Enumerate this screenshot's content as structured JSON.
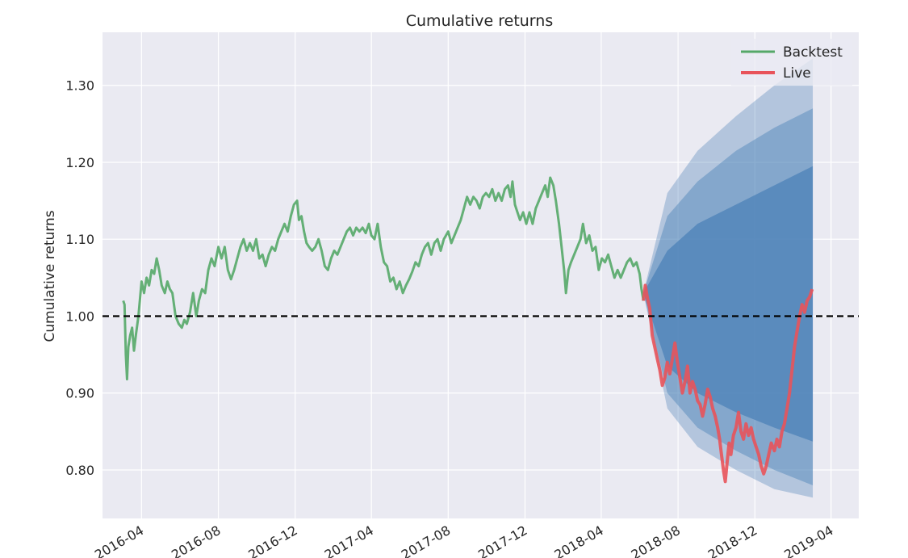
{
  "chart_data": {
    "type": "line",
    "title": "Cumulative returns",
    "ylabel": "Cumulative returns",
    "xlabel": "",
    "xlim": [
      "2016-01-30",
      "2019-05-15"
    ],
    "ylim": [
      0.737,
      1.369
    ],
    "y_ticks": [
      0.8,
      0.9,
      1.0,
      1.1,
      1.2,
      1.3
    ],
    "y_tick_labels": [
      "0.80",
      "0.90",
      "1.00",
      "1.10",
      "1.20",
      "1.30"
    ],
    "x_ticks": [
      "2016-04-01",
      "2016-08-01",
      "2016-12-01",
      "2017-04-01",
      "2017-08-01",
      "2017-12-01",
      "2018-04-01",
      "2018-08-01",
      "2018-12-01",
      "2019-04-01"
    ],
    "x_tick_labels": [
      "2016-04",
      "2016-08",
      "2016-12",
      "2017-04",
      "2017-08",
      "2017-12",
      "2018-04",
      "2018-08",
      "2018-12",
      "2019-04"
    ],
    "grid": true,
    "reference_line": {
      "y": 1.0,
      "style": "dashed",
      "color": "#000000"
    },
    "legend": {
      "position": "top-right",
      "entries": [
        "Backtest",
        "Live"
      ]
    },
    "series": [
      {
        "name": "Backtest",
        "color": "#55a868",
        "points": [
          [
            "2016-03-03",
            1.02
          ],
          [
            "2016-03-05",
            1.015
          ],
          [
            "2016-03-07",
            0.95
          ],
          [
            "2016-03-09",
            0.918
          ],
          [
            "2016-03-11",
            0.96
          ],
          [
            "2016-03-14",
            0.975
          ],
          [
            "2016-03-17",
            0.985
          ],
          [
            "2016-03-20",
            0.955
          ],
          [
            "2016-03-23",
            0.975
          ],
          [
            "2016-03-27",
            1.0
          ],
          [
            "2016-04-01",
            1.045
          ],
          [
            "2016-04-05",
            1.03
          ],
          [
            "2016-04-09",
            1.05
          ],
          [
            "2016-04-13",
            1.04
          ],
          [
            "2016-04-17",
            1.06
          ],
          [
            "2016-04-21",
            1.055
          ],
          [
            "2016-04-25",
            1.075
          ],
          [
            "2016-04-29",
            1.06
          ],
          [
            "2016-05-03",
            1.04
          ],
          [
            "2016-05-08",
            1.03
          ],
          [
            "2016-05-12",
            1.045
          ],
          [
            "2016-05-16",
            1.035
          ],
          [
            "2016-05-20",
            1.03
          ],
          [
            "2016-05-25",
            1.0
          ],
          [
            "2016-05-30",
            0.99
          ],
          [
            "2016-06-04",
            0.985
          ],
          [
            "2016-06-08",
            0.995
          ],
          [
            "2016-06-12",
            0.99
          ],
          [
            "2016-06-17",
            1.005
          ],
          [
            "2016-06-22",
            1.03
          ],
          [
            "2016-06-27",
            1.0
          ],
          [
            "2016-07-01",
            1.02
          ],
          [
            "2016-07-06",
            1.035
          ],
          [
            "2016-07-11",
            1.03
          ],
          [
            "2016-07-16",
            1.06
          ],
          [
            "2016-07-21",
            1.075
          ],
          [
            "2016-07-26",
            1.065
          ],
          [
            "2016-08-01",
            1.09
          ],
          [
            "2016-08-06",
            1.075
          ],
          [
            "2016-08-11",
            1.09
          ],
          [
            "2016-08-16",
            1.06
          ],
          [
            "2016-08-21",
            1.048
          ],
          [
            "2016-08-26",
            1.06
          ],
          [
            "2016-08-31",
            1.075
          ],
          [
            "2016-09-05",
            1.09
          ],
          [
            "2016-09-10",
            1.1
          ],
          [
            "2016-09-15",
            1.085
          ],
          [
            "2016-09-20",
            1.095
          ],
          [
            "2016-09-25",
            1.085
          ],
          [
            "2016-09-30",
            1.1
          ],
          [
            "2016-10-05",
            1.075
          ],
          [
            "2016-10-10",
            1.08
          ],
          [
            "2016-10-15",
            1.065
          ],
          [
            "2016-10-20",
            1.08
          ],
          [
            "2016-10-25",
            1.09
          ],
          [
            "2016-10-30",
            1.085
          ],
          [
            "2016-11-04",
            1.1
          ],
          [
            "2016-11-09",
            1.11
          ],
          [
            "2016-11-14",
            1.12
          ],
          [
            "2016-11-19",
            1.11
          ],
          [
            "2016-11-24",
            1.13
          ],
          [
            "2016-11-29",
            1.145
          ],
          [
            "2016-12-04",
            1.15
          ],
          [
            "2016-12-07",
            1.125
          ],
          [
            "2016-12-11",
            1.13
          ],
          [
            "2016-12-15",
            1.11
          ],
          [
            "2016-12-19",
            1.095
          ],
          [
            "2016-12-23",
            1.09
          ],
          [
            "2016-12-28",
            1.085
          ],
          [
            "2017-01-02",
            1.09
          ],
          [
            "2017-01-07",
            1.1
          ],
          [
            "2017-01-12",
            1.085
          ],
          [
            "2017-01-17",
            1.065
          ],
          [
            "2017-01-22",
            1.06
          ],
          [
            "2017-01-27",
            1.075
          ],
          [
            "2017-02-01",
            1.085
          ],
          [
            "2017-02-06",
            1.08
          ],
          [
            "2017-02-11",
            1.09
          ],
          [
            "2017-02-16",
            1.1
          ],
          [
            "2017-02-21",
            1.11
          ],
          [
            "2017-02-26",
            1.115
          ],
          [
            "2017-03-03",
            1.105
          ],
          [
            "2017-03-08",
            1.115
          ],
          [
            "2017-03-13",
            1.11
          ],
          [
            "2017-03-18",
            1.115
          ],
          [
            "2017-03-23",
            1.108
          ],
          [
            "2017-03-28",
            1.12
          ],
          [
            "2017-04-01",
            1.105
          ],
          [
            "2017-04-06",
            1.1
          ],
          [
            "2017-04-11",
            1.12
          ],
          [
            "2017-04-16",
            1.09
          ],
          [
            "2017-04-21",
            1.07
          ],
          [
            "2017-04-26",
            1.065
          ],
          [
            "2017-05-01",
            1.045
          ],
          [
            "2017-05-06",
            1.05
          ],
          [
            "2017-05-11",
            1.035
          ],
          [
            "2017-05-16",
            1.045
          ],
          [
            "2017-05-21",
            1.03
          ],
          [
            "2017-05-26",
            1.04
          ],
          [
            "2017-05-31",
            1.048
          ],
          [
            "2017-06-05",
            1.058
          ],
          [
            "2017-06-10",
            1.07
          ],
          [
            "2017-06-15",
            1.065
          ],
          [
            "2017-06-20",
            1.08
          ],
          [
            "2017-06-25",
            1.09
          ],
          [
            "2017-06-30",
            1.095
          ],
          [
            "2017-07-05",
            1.08
          ],
          [
            "2017-07-10",
            1.095
          ],
          [
            "2017-07-15",
            1.1
          ],
          [
            "2017-07-20",
            1.085
          ],
          [
            "2017-07-25",
            1.1
          ],
          [
            "2017-08-01",
            1.11
          ],
          [
            "2017-08-06",
            1.095
          ],
          [
            "2017-08-11",
            1.105
          ],
          [
            "2017-08-16",
            1.115
          ],
          [
            "2017-08-21",
            1.125
          ],
          [
            "2017-08-26",
            1.14
          ],
          [
            "2017-08-31",
            1.155
          ],
          [
            "2017-09-05",
            1.145
          ],
          [
            "2017-09-10",
            1.155
          ],
          [
            "2017-09-15",
            1.15
          ],
          [
            "2017-09-20",
            1.14
          ],
          [
            "2017-09-25",
            1.155
          ],
          [
            "2017-09-30",
            1.16
          ],
          [
            "2017-10-05",
            1.155
          ],
          [
            "2017-10-10",
            1.165
          ],
          [
            "2017-10-15",
            1.15
          ],
          [
            "2017-10-20",
            1.16
          ],
          [
            "2017-10-25",
            1.15
          ],
          [
            "2017-10-30",
            1.165
          ],
          [
            "2017-11-04",
            1.17
          ],
          [
            "2017-11-08",
            1.155
          ],
          [
            "2017-11-11",
            1.175
          ],
          [
            "2017-11-15",
            1.145
          ],
          [
            "2017-11-19",
            1.135
          ],
          [
            "2017-11-23",
            1.125
          ],
          [
            "2017-11-28",
            1.135
          ],
          [
            "2017-12-03",
            1.12
          ],
          [
            "2017-12-08",
            1.135
          ],
          [
            "2017-12-13",
            1.12
          ],
          [
            "2017-12-18",
            1.14
          ],
          [
            "2017-12-23",
            1.15
          ],
          [
            "2017-12-28",
            1.16
          ],
          [
            "2018-01-02",
            1.17
          ],
          [
            "2018-01-06",
            1.155
          ],
          [
            "2018-01-10",
            1.18
          ],
          [
            "2018-01-15",
            1.17
          ],
          [
            "2018-01-19",
            1.15
          ],
          [
            "2018-01-24",
            1.12
          ],
          [
            "2018-01-28",
            1.09
          ],
          [
            "2018-02-01",
            1.06
          ],
          [
            "2018-02-04",
            1.03
          ],
          [
            "2018-02-08",
            1.06
          ],
          [
            "2018-02-12",
            1.07
          ],
          [
            "2018-02-17",
            1.08
          ],
          [
            "2018-02-22",
            1.09
          ],
          [
            "2018-02-27",
            1.1
          ],
          [
            "2018-03-03",
            1.12
          ],
          [
            "2018-03-08",
            1.095
          ],
          [
            "2018-03-13",
            1.105
          ],
          [
            "2018-03-18",
            1.085
          ],
          [
            "2018-03-23",
            1.09
          ],
          [
            "2018-03-28",
            1.06
          ],
          [
            "2018-04-02",
            1.075
          ],
          [
            "2018-04-07",
            1.07
          ],
          [
            "2018-04-12",
            1.08
          ],
          [
            "2018-04-17",
            1.065
          ],
          [
            "2018-04-22",
            1.05
          ],
          [
            "2018-04-27",
            1.06
          ],
          [
            "2018-05-02",
            1.05
          ],
          [
            "2018-05-07",
            1.06
          ],
          [
            "2018-05-12",
            1.07
          ],
          [
            "2018-05-17",
            1.075
          ],
          [
            "2018-05-22",
            1.065
          ],
          [
            "2018-05-27",
            1.07
          ],
          [
            "2018-06-01",
            1.055
          ],
          [
            "2018-06-04",
            1.035
          ],
          [
            "2018-06-07",
            1.02
          ]
        ]
      },
      {
        "name": "Live",
        "color": "#e8535a",
        "points": [
          [
            "2018-06-07",
            1.02
          ],
          [
            "2018-06-10",
            1.04
          ],
          [
            "2018-06-13",
            1.025
          ],
          [
            "2018-06-17",
            1.01
          ],
          [
            "2018-06-21",
            0.975
          ],
          [
            "2018-06-25",
            0.96
          ],
          [
            "2018-06-29",
            0.945
          ],
          [
            "2018-07-03",
            0.93
          ],
          [
            "2018-07-07",
            0.91
          ],
          [
            "2018-07-11",
            0.92
          ],
          [
            "2018-07-15",
            0.94
          ],
          [
            "2018-07-19",
            0.925
          ],
          [
            "2018-07-23",
            0.945
          ],
          [
            "2018-07-27",
            0.965
          ],
          [
            "2018-07-31",
            0.94
          ],
          [
            "2018-08-04",
            0.92
          ],
          [
            "2018-08-08",
            0.9
          ],
          [
            "2018-08-12",
            0.915
          ],
          [
            "2018-08-16",
            0.935
          ],
          [
            "2018-08-20",
            0.9
          ],
          [
            "2018-08-24",
            0.915
          ],
          [
            "2018-08-28",
            0.905
          ],
          [
            "2018-09-01",
            0.89
          ],
          [
            "2018-09-05",
            0.885
          ],
          [
            "2018-09-09",
            0.87
          ],
          [
            "2018-09-13",
            0.885
          ],
          [
            "2018-09-17",
            0.905
          ],
          [
            "2018-09-21",
            0.895
          ],
          [
            "2018-09-25",
            0.88
          ],
          [
            "2018-09-29",
            0.87
          ],
          [
            "2018-10-03",
            0.855
          ],
          [
            "2018-10-06",
            0.84
          ],
          [
            "2018-10-09",
            0.82
          ],
          [
            "2018-10-12",
            0.8
          ],
          [
            "2018-10-15",
            0.785
          ],
          [
            "2018-10-18",
            0.81
          ],
          [
            "2018-10-21",
            0.835
          ],
          [
            "2018-10-24",
            0.82
          ],
          [
            "2018-10-28",
            0.845
          ],
          [
            "2018-11-01",
            0.855
          ],
          [
            "2018-11-05",
            0.875
          ],
          [
            "2018-11-09",
            0.85
          ],
          [
            "2018-11-13",
            0.84
          ],
          [
            "2018-11-17",
            0.86
          ],
          [
            "2018-11-21",
            0.845
          ],
          [
            "2018-11-25",
            0.855
          ],
          [
            "2018-11-29",
            0.84
          ],
          [
            "2018-12-03",
            0.83
          ],
          [
            "2018-12-07",
            0.82
          ],
          [
            "2018-12-11",
            0.805
          ],
          [
            "2018-12-15",
            0.795
          ],
          [
            "2018-12-19",
            0.805
          ],
          [
            "2018-12-23",
            0.82
          ],
          [
            "2018-12-27",
            0.835
          ],
          [
            "2019-01-01",
            0.825
          ],
          [
            "2019-01-05",
            0.84
          ],
          [
            "2019-01-09",
            0.83
          ],
          [
            "2019-01-13",
            0.85
          ],
          [
            "2019-01-17",
            0.86
          ],
          [
            "2019-01-21",
            0.88
          ],
          [
            "2019-01-25",
            0.9
          ],
          [
            "2019-01-29",
            0.93
          ],
          [
            "2019-02-02",
            0.96
          ],
          [
            "2019-02-06",
            0.98
          ],
          [
            "2019-02-10",
            1.0
          ],
          [
            "2019-02-14",
            1.015
          ],
          [
            "2019-02-18",
            1.005
          ],
          [
            "2019-02-22",
            1.02
          ],
          [
            "2019-02-26",
            1.025
          ],
          [
            "2019-03-02",
            1.035
          ]
        ]
      }
    ],
    "cone": {
      "color": "#4c82b8",
      "x": [
        "2018-06-07",
        "2018-07-15",
        "2018-09-01",
        "2018-11-01",
        "2019-01-01",
        "2019-03-03"
      ],
      "bands": [
        {
          "lower": [
            1.03,
            0.935,
            0.9,
            0.875,
            0.855,
            0.837
          ],
          "upper": [
            1.03,
            1.085,
            1.12,
            1.145,
            1.17,
            1.195
          ],
          "opacity": 0.75
        },
        {
          "lower": [
            1.03,
            0.9,
            0.855,
            0.825,
            0.8,
            0.78
          ],
          "upper": [
            1.03,
            1.13,
            1.175,
            1.215,
            1.245,
            1.27
          ],
          "opacity": 0.45
        },
        {
          "lower": [
            1.03,
            0.88,
            0.83,
            0.8,
            0.775,
            0.764
          ],
          "upper": [
            1.03,
            1.16,
            1.215,
            1.26,
            1.3,
            1.335
          ],
          "opacity": 0.35
        }
      ]
    }
  }
}
